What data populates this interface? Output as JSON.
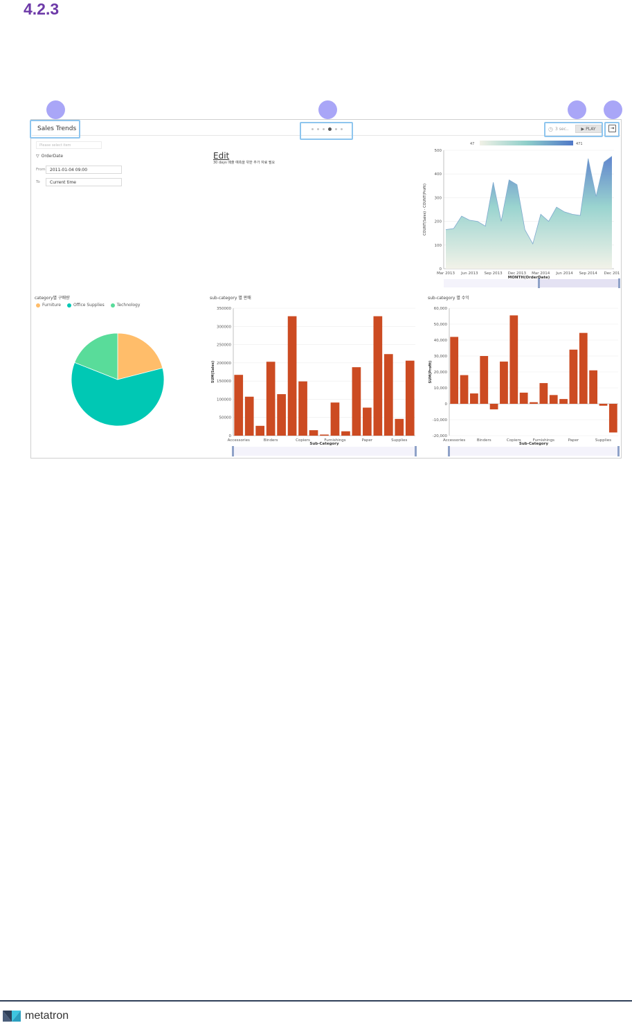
{
  "doc": {
    "section_number": "4.2.3"
  },
  "header": {
    "title": "Sales Trends",
    "pages": [
      false,
      false,
      false,
      true,
      false,
      false
    ],
    "timer_label": "3 sec..",
    "play_label": "PLAY",
    "timer_icon": "clock-icon",
    "exit_icon": "exit-icon"
  },
  "filter": {
    "search_placeholder": "Please select item",
    "field": "OrderDate",
    "from_label": "From",
    "from_value": "2011-01-04 09:00",
    "to_label": "To",
    "to_value": "Current time"
  },
  "memo": {
    "edit_label": "Edit",
    "text": "30 days 매출 예측을 위한 추가 자료 필요"
  },
  "colors": {
    "accent_purple": "#6d3aa8",
    "highlight_blue": "#8ec5ee",
    "marker": "#a9a6f7",
    "bar": "#cc4b22",
    "furniture": "#ffbd6a",
    "office_supplies": "#00c8b4",
    "technology": "#59dc9a"
  },
  "footer": {
    "brand": "metatron"
  },
  "chart_data": [
    {
      "type": "area",
      "title": "",
      "xlabel": "MONTH(OrderDate)",
      "ylabel": "COUNT(Sales) - COUNT(Profit)",
      "ylim": [
        0,
        500
      ],
      "yticks": [
        0,
        100,
        200,
        300,
        400,
        500
      ],
      "xticks": [
        "Mar 2013",
        "Jun 2013",
        "Sep 2013",
        "Dec 2013",
        "Mar 2014",
        "Jun 2014",
        "Sep 2014",
        "Dec 201"
      ],
      "xtick_index": [
        0,
        3,
        6,
        9,
        12,
        15,
        18,
        21
      ],
      "values": [
        165,
        170,
        222,
        205,
        200,
        180,
        365,
        200,
        375,
        355,
        165,
        105,
        230,
        200,
        260,
        240,
        230,
        225,
        465,
        305,
        450,
        475
      ],
      "color_range": {
        "min_label": "47",
        "max_label": "471"
      },
      "grid": true
    },
    {
      "type": "pie",
      "title": "category별 구매량",
      "legend": "top-left",
      "slices": [
        {
          "name": "Furniture",
          "value": 21
        },
        {
          "name": "Office Supplies",
          "value": 60
        },
        {
          "name": "Technology",
          "value": 19
        }
      ]
    },
    {
      "type": "bar",
      "title": "sub-category 별 판매",
      "xlabel": "Sub-Category",
      "ylabel": "SUM(Sales)",
      "ylim": [
        0,
        350000
      ],
      "yticks": [
        0,
        50000,
        100000,
        150000,
        200000,
        250000,
        300000,
        350000
      ],
      "xticks": [
        "Accessories",
        "Binders",
        "Copiers",
        "Furnishings",
        "Paper",
        "Supplies"
      ],
      "xtick_index": [
        0,
        3,
        6,
        9,
        12,
        15
      ],
      "values": [
        167000,
        107000,
        27000,
        203000,
        114000,
        328000,
        149000,
        15000,
        3000,
        91000,
        12000,
        188000,
        77000,
        328000,
        224000,
        46000,
        206000
      ]
    },
    {
      "type": "bar",
      "title": "sub-category 별 수익",
      "xlabel": "Sub-Category",
      "ylabel": "SUM(Profit)",
      "ylim": [
        -20000,
        60000
      ],
      "yticks": [
        -20000,
        -10000,
        0,
        10000,
        20000,
        30000,
        40000,
        50000,
        60000
      ],
      "ytick_labels": [
        "-20,000",
        "-10,000",
        "0",
        "10,000",
        "20,000",
        "30,000",
        "40,000",
        "50,000",
        "60,000"
      ],
      "xticks": [
        "Accessories",
        "Binders",
        "Copiers",
        "Furnishings",
        "Paper",
        "Supplies"
      ],
      "xtick_index": [
        0,
        3,
        6,
        9,
        12,
        15
      ],
      "values": [
        42000,
        18000,
        6500,
        30000,
        -3500,
        26500,
        55500,
        7000,
        1000,
        13000,
        5500,
        3000,
        34000,
        44500,
        21000,
        -1200,
        -18000
      ]
    }
  ]
}
